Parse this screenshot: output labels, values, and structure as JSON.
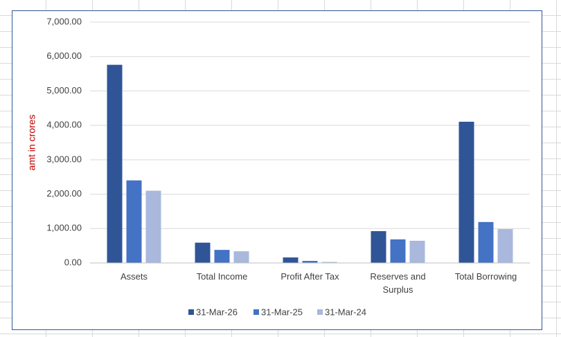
{
  "chart_data": {
    "type": "bar",
    "y_label": "amt in crores",
    "categories": [
      "Assets",
      "Total Income",
      "Profit After Tax",
      "Reserves and Surplus",
      "Total Borrowing"
    ],
    "series": [
      {
        "name": "31-Mar-26",
        "color": "#2f5597",
        "values": [
          5760,
          590,
          160,
          925,
          4105
        ]
      },
      {
        "name": "31-Mar-25",
        "color": "#4472c4",
        "values": [
          2400,
          380,
          60,
          685,
          1190
        ]
      },
      {
        "name": "31-Mar-24",
        "color": "#a9b8dc",
        "values": [
          2100,
          340,
          30,
          645,
          985
        ]
      }
    ],
    "ylim": [
      0,
      7000
    ],
    "yticks": [
      {
        "value": 0,
        "label": "0.00"
      },
      {
        "value": 1000,
        "label": "1,000.00"
      },
      {
        "value": 2000,
        "label": "2,000.00"
      },
      {
        "value": 3000,
        "label": "3,000.00"
      },
      {
        "value": 4000,
        "label": "4,000.00"
      },
      {
        "value": 5000,
        "label": "5,000.00"
      },
      {
        "value": 6000,
        "label": "6,000.00"
      },
      {
        "value": 7000,
        "label": "7,000.00"
      }
    ],
    "grid": true,
    "legend": "bottom",
    "legend_text_color": "#c00000"
  }
}
